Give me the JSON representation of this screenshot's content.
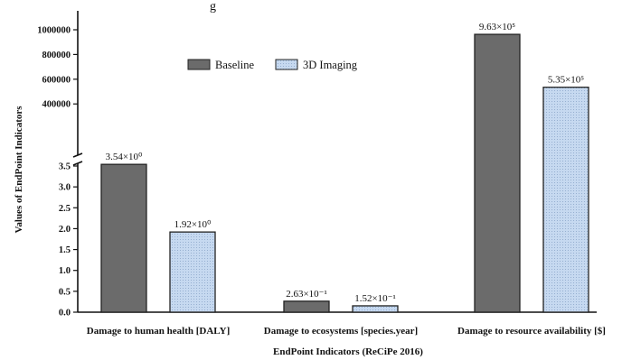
{
  "top_fragment": "g",
  "chart_data": {
    "type": "bar",
    "title": "",
    "xlabel": "EndPoint Indicators (ReCiPe 2016)",
    "ylabel": "Values of EndPoint Indicators",
    "categories": [
      "Damage to human health [DALY]",
      "Damage to ecosystems [species.year]",
      "Damage to resource availability [$]"
    ],
    "series": [
      {
        "name": "Baseline",
        "color": "#6b6b6b",
        "values": [
          3.54,
          0.263,
          963000
        ],
        "labels": [
          "3.54×10⁰",
          "2.63×10⁻¹",
          "9.63×10⁵"
        ]
      },
      {
        "name": "3D Imaging",
        "color": "#c6d9f0",
        "values": [
          1.92,
          0.152,
          535000
        ],
        "labels": [
          "1.92×10⁰",
          "1.52×10⁻¹",
          "5.35×10⁵"
        ]
      }
    ],
    "axis_break": true,
    "lower_segment": {
      "ylim": [
        0,
        3.5
      ],
      "ticks": [
        "0.0",
        "0.5",
        "1.0",
        "1.5",
        "2.0",
        "2.5",
        "3.0",
        "3.5"
      ]
    },
    "upper_segment": {
      "ylim": [
        300000,
        1000000
      ],
      "ticks": [
        "400000",
        "600000",
        "800000",
        "1000000"
      ]
    },
    "grid": false,
    "legend_position": "top-center"
  }
}
